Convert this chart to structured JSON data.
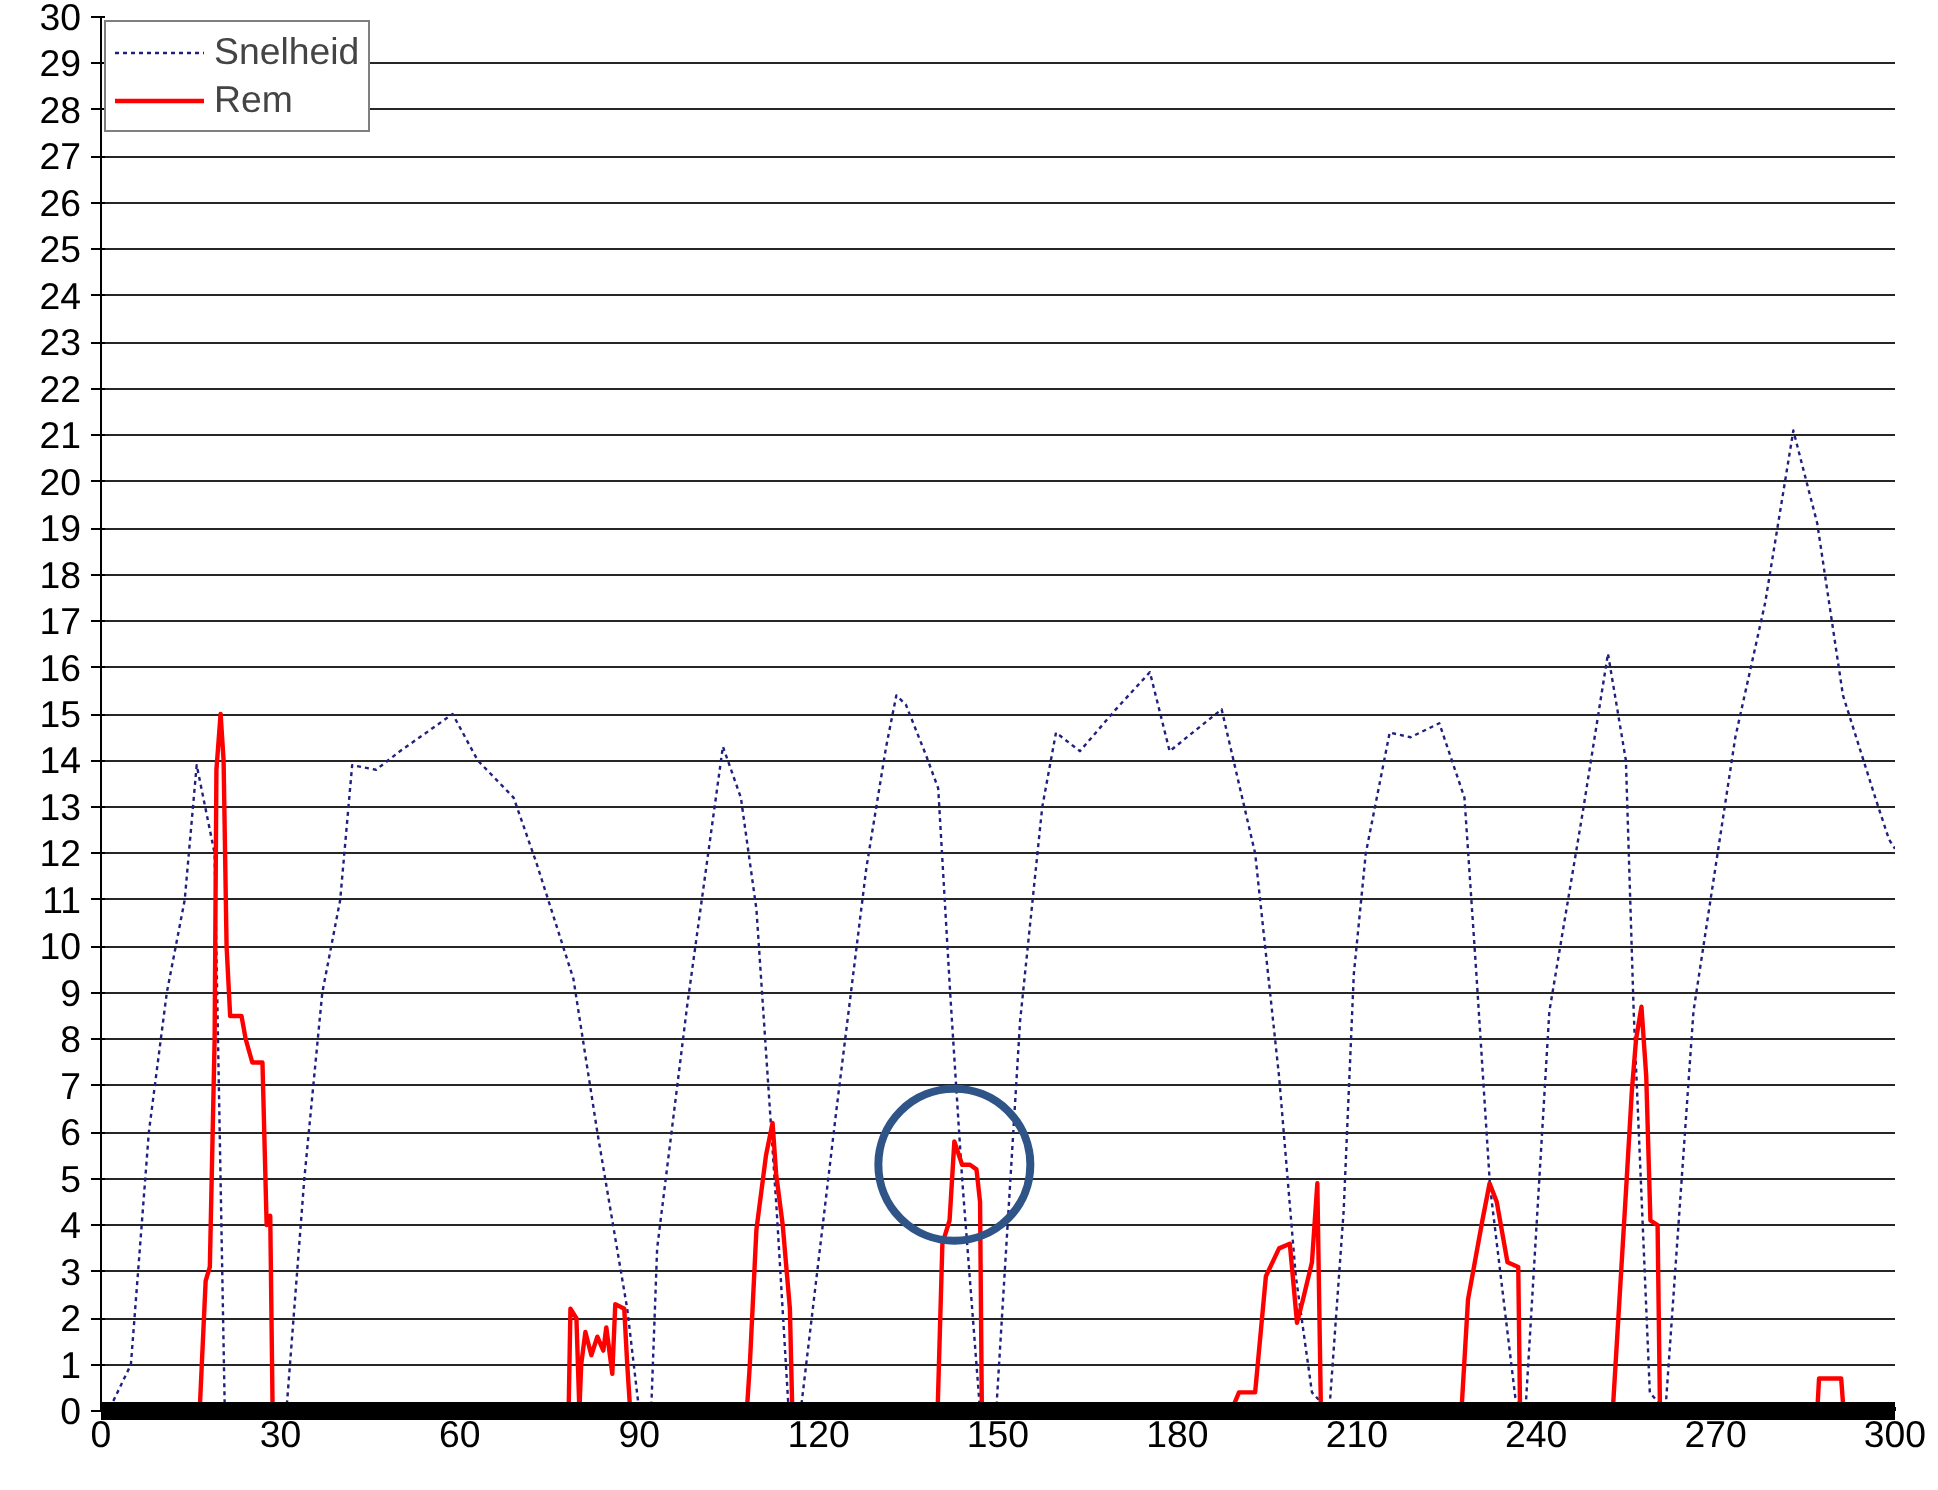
{
  "chart_data": {
    "type": "line",
    "series": [
      {
        "name": "Snelheid",
        "color": "#20207f",
        "line_style": "dotted",
        "x": [
          0,
          2,
          5,
          8,
          11,
          14,
          16,
          19,
          20.7,
          31,
          34,
          37,
          40,
          42,
          46,
          50,
          58.8,
          63,
          69,
          72.8,
          79,
          83,
          88,
          90,
          92,
          93,
          98,
          104,
          107,
          109.6,
          113,
          115,
          117,
          123,
          128,
          131.3,
          133,
          134.6,
          138,
          140,
          142,
          144,
          147,
          149.7,
          153.7,
          157.4,
          159.7,
          163.7,
          169.7,
          175.4,
          178.7,
          187.4,
          193,
          197,
          199.8,
          202.5,
          205.4,
          207.8,
          209.5,
          211.5,
          215.5,
          219,
          223.8,
          228,
          230,
          232.3,
          236.5,
          238.2,
          242.2,
          247.8,
          252,
          255,
          256.3,
          259,
          261.6,
          266.3,
          273.3,
          278.3,
          283,
          287,
          291.3,
          296.7,
          299,
          300
        ],
        "values": [
          0,
          0.2,
          1,
          6,
          9,
          11,
          13.9,
          12,
          0,
          0,
          5,
          9,
          11,
          13.9,
          13.8,
          14.2,
          15,
          14,
          13.2,
          11.8,
          9.3,
          6,
          2.2,
          0,
          0,
          3.5,
          8.7,
          14.3,
          13.2,
          10.8,
          4.3,
          0,
          0,
          6.5,
          11.7,
          14.3,
          15.4,
          15.2,
          14.1,
          13.4,
          9,
          5,
          0,
          0,
          8.4,
          13,
          14.6,
          14.2,
          15.1,
          15.9,
          14.2,
          15.1,
          12,
          7.2,
          2.9,
          0.4,
          0,
          4.3,
          9.4,
          12,
          14.6,
          14.5,
          14.8,
          13.2,
          9.4,
          4.8,
          0.3,
          0,
          8.6,
          12.9,
          16.3,
          14,
          8.6,
          0.4,
          0,
          8.6,
          14.5,
          17.4,
          21.1,
          19.1,
          15.4,
          13.2,
          12.3,
          12.1
        ]
      },
      {
        "name": "Rem",
        "color": "#ff0000",
        "line_style": "solid",
        "x": [
          0,
          16.5,
          17.5,
          18.2,
          19,
          19.3,
          20,
          20.5,
          21,
          21.6,
          23.5,
          24.2,
          25.3,
          27,
          27.4,
          27.7,
          28.3,
          28.7,
          78.2,
          78.5,
          79.5,
          80,
          80.3,
          81,
          82,
          83,
          84,
          84.5,
          85.5,
          86,
          87.5,
          88,
          88.5,
          108,
          108.5,
          109.6,
          111.2,
          112.3,
          112.9,
          114,
          115.2,
          115.6,
          139.9,
          140.7,
          141.9,
          142.7,
          144,
          145.3,
          146.4,
          147,
          147.3,
          189,
          190.3,
          193,
          194.8,
          197,
          198.8,
          200,
          201,
          202.5,
          203.4,
          204,
          227.5,
          228.6,
          231,
          232.2,
          233.4,
          235.2,
          237,
          237.3,
          252.8,
          255,
          256,
          256.7,
          257.6,
          258.4,
          259.1,
          260.3,
          260.7,
          287,
          287.3,
          291,
          291.4,
          300
        ],
        "values": [
          0,
          0,
          2.8,
          3.1,
          8,
          13.8,
          15,
          14,
          10,
          8.5,
          8.5,
          8,
          7.5,
          7.5,
          5.5,
          4,
          4.2,
          0,
          0,
          2.2,
          2,
          0,
          1,
          1.7,
          1.2,
          1.6,
          1.3,
          1.8,
          0.8,
          2.3,
          2.2,
          1,
          0,
          0,
          1,
          3.9,
          5.5,
          6.2,
          5.1,
          4,
          2.2,
          0,
          0,
          3.6,
          4.1,
          5.8,
          5.3,
          5.3,
          5.2,
          4.5,
          0,
          0,
          0.4,
          0.4,
          2.9,
          3.5,
          3.6,
          1.9,
          2.4,
          3.2,
          4.9,
          0,
          0,
          2.4,
          4.1,
          4.9,
          4.5,
          3.2,
          3.1,
          0,
          0,
          4.7,
          6.9,
          8,
          8.7,
          7.2,
          4.1,
          4,
          0,
          0,
          0.7,
          0.7,
          0,
          0
        ]
      }
    ],
    "xlim": [
      0,
      300
    ],
    "xticks": [
      0,
      30,
      60,
      90,
      120,
      150,
      180,
      210,
      240,
      270,
      300
    ],
    "ylim": [
      0,
      30
    ],
    "yticks": [
      0,
      1,
      2,
      3,
      4,
      5,
      6,
      7,
      8,
      9,
      10,
      11,
      12,
      13,
      14,
      15,
      16,
      17,
      18,
      19,
      20,
      21,
      22,
      23,
      24,
      25,
      26,
      27,
      28,
      29,
      30
    ],
    "grid": "y",
    "legend": "top left",
    "marker": "none"
  }
}
